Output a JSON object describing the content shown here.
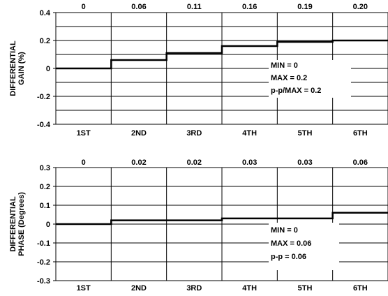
{
  "chart_data": [
    {
      "type": "line",
      "step": true,
      "ylabel_lines": [
        "DIFFERENTIAL",
        "GAIN (%)"
      ],
      "categories": [
        "1ST",
        "2ND",
        "3RD",
        "4TH",
        "5TH",
        "6TH"
      ],
      "top_labels": [
        "0",
        "0.06",
        "0.11",
        "0.16",
        "0.19",
        "0.20"
      ],
      "values": [
        0,
        0.06,
        0.11,
        0.16,
        0.19,
        0.2
      ],
      "ylim": [
        -0.4,
        0.4
      ],
      "yticks": [
        "0.4",
        "0.2",
        "0",
        "-0.2",
        "-0.4"
      ],
      "ytick_values": [
        0.4,
        0.2,
        0,
        -0.2,
        -0.4
      ],
      "grid": true,
      "annotation": [
        "MIN = 0",
        "MAX = 0.2",
        "p-p/MAX = 0.2"
      ]
    },
    {
      "type": "line",
      "step": true,
      "ylabel_lines": [
        "DIFFERENTIAL",
        "PHASE (Degrees)"
      ],
      "categories": [
        "1ST",
        "2ND",
        "3RD",
        "4TH",
        "5TH",
        "6TH"
      ],
      "top_labels": [
        "0",
        "0.02",
        "0.02",
        "0.03",
        "0.03",
        "0.06"
      ],
      "values": [
        0,
        0.02,
        0.02,
        0.03,
        0.03,
        0.06
      ],
      "ylim": [
        -0.3,
        0.3
      ],
      "yticks": [
        "0.3",
        "0.2",
        "0.1",
        "0",
        "-0.1",
        "-0.2",
        "-0.3"
      ],
      "ytick_values": [
        0.3,
        0.2,
        0.1,
        0,
        -0.1,
        -0.2,
        -0.3
      ],
      "grid": true,
      "annotation": [
        "MIN = 0",
        "MAX = 0.06",
        "p-p = 0.06"
      ]
    }
  ]
}
